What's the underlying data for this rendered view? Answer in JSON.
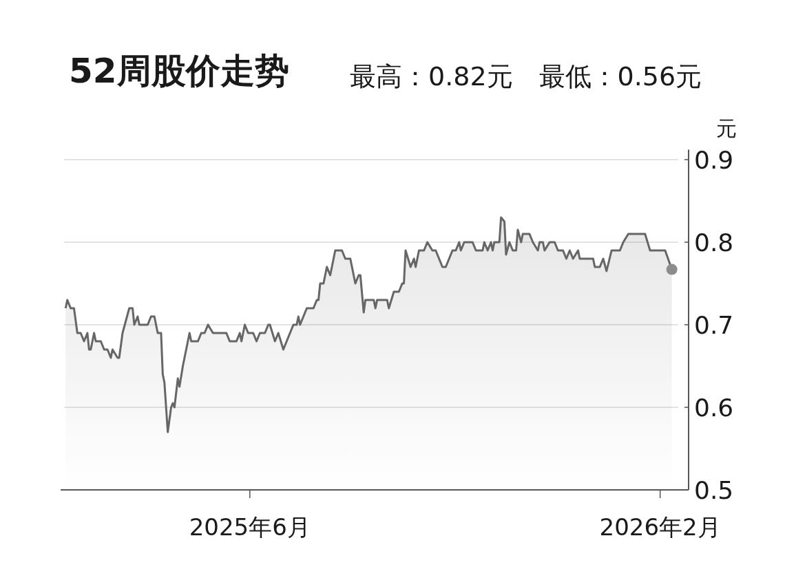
{
  "chart_data": {
    "type": "area",
    "title": "52周股价走势",
    "subtitle": "最高：0.82元　最低：0.56元",
    "ylabel": "元",
    "xlim": [
      "2025-02-08",
      "2026-02-18"
    ],
    "xticks": [
      {
        "value": "2025-06-01",
        "label": "2025年6月"
      },
      {
        "value": "2026-02-01",
        "label": "2026年2月"
      }
    ],
    "ylim": [
      0.5,
      0.912
    ],
    "yticks": [
      0.5,
      0.6,
      0.7,
      0.8,
      0.9
    ],
    "grid": "y",
    "series": [
      {
        "color": "#666666",
        "x": [
          "2025-02-11",
          "2025-02-12",
          "2025-02-14",
          "2025-02-16",
          "2025-02-18",
          "2025-02-20",
          "2025-02-22",
          "2025-02-24",
          "2025-02-25",
          "2025-02-26",
          "2025-02-28",
          "2025-03-01",
          "2025-03-04",
          "2025-03-06",
          "2025-03-08",
          "2025-03-10",
          "2025-03-11",
          "2025-03-14",
          "2025-03-15",
          "2025-03-17",
          "2025-03-21",
          "2025-03-23",
          "2025-03-24",
          "2025-03-26",
          "2025-03-27",
          "2025-04-01",
          "2025-04-03",
          "2025-04-05",
          "2025-04-07",
          "2025-04-09",
          "2025-04-10",
          "2025-04-11",
          "2025-04-13",
          "2025-04-15",
          "2025-04-16",
          "2025-04-17",
          "2025-04-19",
          "2025-04-20",
          "2025-04-22",
          "2025-04-24",
          "2025-04-26",
          "2025-04-27",
          "2025-05-01",
          "2025-05-03",
          "2025-05-05",
          "2025-05-07",
          "2025-05-10",
          "2025-05-18",
          "2025-05-20",
          "2025-05-24",
          "2025-05-26",
          "2025-05-27",
          "2025-05-29",
          "2025-05-31",
          "2025-06-03",
          "2025-06-05",
          "2025-06-07",
          "2025-06-10",
          "2025-06-12",
          "2025-06-13",
          "2025-06-16",
          "2025-06-18",
          "2025-06-21",
          "2025-06-22",
          "2025-06-27",
          "2025-06-29",
          "2025-06-30",
          "2025-07-01",
          "2025-07-05",
          "2025-07-09",
          "2025-07-11",
          "2025-07-12",
          "2025-07-13",
          "2025-07-15",
          "2025-07-17",
          "2025-07-19",
          "2025-07-22",
          "2025-07-26",
          "2025-07-28",
          "2025-07-31",
          "2025-08-02",
          "2025-08-03",
          "2025-08-05",
          "2025-08-06",
          "2025-08-08",
          "2025-08-09",
          "2025-08-14",
          "2025-08-15",
          "2025-08-16",
          "2025-08-22",
          "2025-08-23",
          "2025-08-26",
          "2025-08-29",
          "2025-08-31",
          "2025-09-01",
          "2025-09-02",
          "2025-09-05",
          "2025-09-07",
          "2025-09-08",
          "2025-09-10",
          "2025-09-13",
          "2025-09-15",
          "2025-09-18",
          "2025-09-20",
          "2025-09-22",
          "2025-09-24",
          "2025-09-26",
          "2025-09-30",
          "2025-10-02",
          "2025-10-04",
          "2025-10-05",
          "2025-10-07",
          "2025-10-09",
          "2025-10-12",
          "2025-10-14",
          "2025-10-18",
          "2025-10-19",
          "2025-10-21",
          "2025-10-23",
          "2025-10-24",
          "2025-10-25",
          "2025-10-28",
          "2025-10-29",
          "2025-10-31",
          "2025-11-01",
          "2025-11-03",
          "2025-11-05",
          "2025-11-07",
          "2025-11-08",
          "2025-11-10",
          "2025-11-11",
          "2025-11-15",
          "2025-11-17",
          "2025-11-20",
          "2025-11-21",
          "2025-11-23",
          "2025-11-24",
          "2025-11-27",
          "2025-11-30",
          "2025-12-02",
          "2025-12-05",
          "2025-12-07",
          "2025-12-09",
          "2025-12-11",
          "2025-12-14",
          "2025-12-15",
          "2025-12-23",
          "2025-12-24",
          "2025-12-27",
          "2025-12-29",
          "2025-12-31",
          "2026-01-03",
          "2026-01-08",
          "2026-01-10",
          "2026-01-13",
          "2026-01-23",
          "2026-01-26",
          "2026-02-04",
          "2026-02-08"
        ],
        "values": [
          0.72,
          0.73,
          0.72,
          0.72,
          0.69,
          0.69,
          0.68,
          0.69,
          0.67,
          0.67,
          0.69,
          0.68,
          0.68,
          0.67,
          0.67,
          0.66,
          0.67,
          0.66,
          0.66,
          0.69,
          0.72,
          0.72,
          0.7,
          0.71,
          0.7,
          0.7,
          0.71,
          0.71,
          0.69,
          0.69,
          0.64,
          0.63,
          0.57,
          0.6,
          0.605,
          0.6,
          0.635,
          0.625,
          0.65,
          0.67,
          0.69,
          0.68,
          0.68,
          0.69,
          0.69,
          0.7,
          0.69,
          0.69,
          0.68,
          0.68,
          0.69,
          0.68,
          0.7,
          0.69,
          0.69,
          0.68,
          0.69,
          0.69,
          0.7,
          0.7,
          0.68,
          0.69,
          0.67,
          0.675,
          0.7,
          0.7,
          0.71,
          0.7,
          0.72,
          0.72,
          0.73,
          0.73,
          0.75,
          0.75,
          0.77,
          0.76,
          0.79,
          0.79,
          0.78,
          0.78,
          0.76,
          0.75,
          0.76,
          0.76,
          0.715,
          0.73,
          0.73,
          0.72,
          0.73,
          0.73,
          0.72,
          0.74,
          0.74,
          0.75,
          0.75,
          0.79,
          0.77,
          0.78,
          0.77,
          0.79,
          0.79,
          0.8,
          0.79,
          0.79,
          0.78,
          0.77,
          0.77,
          0.79,
          0.79,
          0.8,
          0.79,
          0.8,
          0.8,
          0.8,
          0.79,
          0.79,
          0.8,
          0.79,
          0.8,
          0.79,
          0.8,
          0.8,
          0.83,
          0.825,
          0.785,
          0.8,
          0.79,
          0.79,
          0.815,
          0.8,
          0.81,
          0.81,
          0.8,
          0.79,
          0.8,
          0.8,
          0.79,
          0.8,
          0.8,
          0.79,
          0.79,
          0.78,
          0.79,
          0.78,
          0.79,
          0.78,
          0.78,
          0.77,
          0.77,
          0.78,
          0.765,
          0.79,
          0.79,
          0.8,
          0.81,
          0.81,
          0.79,
          0.79,
          0.767
        ]
      },
      {
        "type": "scatter",
        "color": "#8c8c8c",
        "marker": "circle",
        "x": [
          "2026-02-08"
        ],
        "values": [
          0.767
        ]
      }
    ]
  }
}
